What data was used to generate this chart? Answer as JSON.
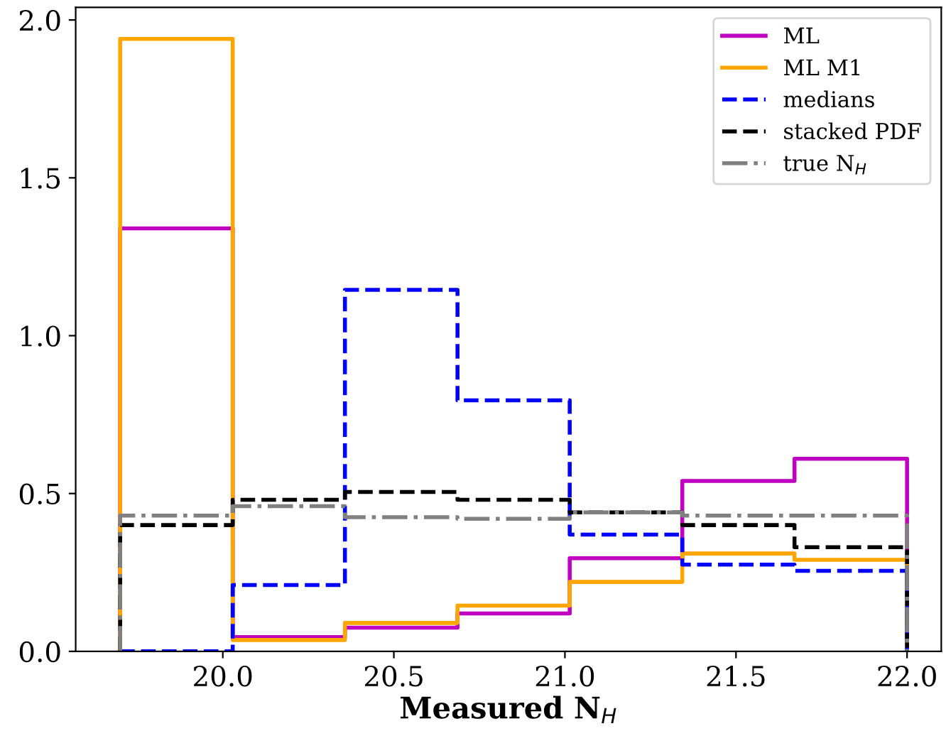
{
  "chart_data": {
    "type": "histogram",
    "xlabel": "Measured N$_{H}$",
    "bins": [
      19.7,
      20.029,
      20.357,
      20.686,
      21.014,
      21.343,
      21.671,
      22.0
    ],
    "series": [
      {
        "name": "ML",
        "color": "#c000c0",
        "line_style": "solid",
        "values": [
          1.34,
          0.045,
          0.075,
          0.12,
          0.295,
          0.54,
          0.61
        ]
      },
      {
        "name": "ML M1",
        "color": "#ffa500",
        "line_style": "solid",
        "values": [
          1.94,
          0.036,
          0.09,
          0.145,
          0.22,
          0.31,
          0.29
        ]
      },
      {
        "name": "medians",
        "color": "#0000ff",
        "line_style": "dashed",
        "values": [
          0,
          0.21,
          1.145,
          0.795,
          0.37,
          0.275,
          0.255
        ]
      },
      {
        "name": "stacked PDF",
        "color": "#000000",
        "line_style": "dashed",
        "values": [
          0.4,
          0.48,
          0.505,
          0.48,
          0.44,
          0.4,
          0.33
        ]
      },
      {
        "name": "true N$_{H}$",
        "color": "#808080",
        "line_style": "dashdot",
        "values": [
          0.43,
          0.46,
          0.425,
          0.42,
          0.44,
          0.43,
          0.43
        ]
      }
    ],
    "xlim": [
      19.57,
      22.1
    ],
    "ylim": [
      0,
      2.04
    ],
    "xticks": [
      {
        "value": 20,
        "label": "20.0"
      },
      20.5,
      {
        "value": 21,
        "label": "21.0"
      },
      21.5,
      {
        "value": 22,
        "label": "22.0"
      }
    ],
    "yticks": [
      {
        "value": 0,
        "label": "0.0"
      },
      0.5,
      {
        "value": 1,
        "label": "1.0"
      },
      1.5,
      {
        "value": 2,
        "label": "2.0"
      }
    ],
    "grid": false,
    "legend": "top right"
  }
}
